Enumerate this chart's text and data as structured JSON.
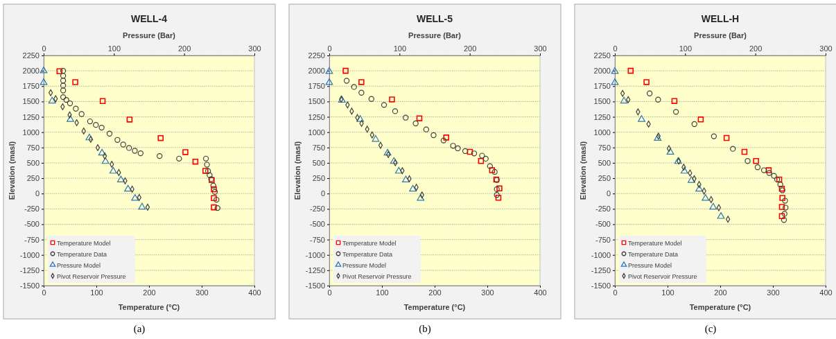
{
  "chart_data": [
    {
      "type": "scatter",
      "title": "WELL-4",
      "xlabel": "Temperature (°C)",
      "x2label": "Pressure (Bar)",
      "ylabel": "Elevation (masl)",
      "annotations": [
        "(a)"
      ],
      "xlim": [
        0,
        400
      ],
      "xticks": [
        0,
        100,
        200,
        300,
        400
      ],
      "x2lim": [
        0,
        300
      ],
      "x2ticks": [
        0,
        100,
        200,
        300
      ],
      "ylim": [
        -1500,
        2250
      ],
      "yticks": [
        -1500,
        -1250,
        -1000,
        -750,
        -500,
        -250,
        0,
        250,
        500,
        750,
        1000,
        1250,
        1500,
        1750,
        2000,
        2250
      ],
      "grid": "y",
      "legend": "bottom left",
      "series": [
        {
          "name": "Temperature Model",
          "color": "#ff0000",
          "marker": "square",
          "x": [
            30,
            60,
            112,
            163,
            222,
            269,
            288,
            307,
            319,
            323,
            323,
            323
          ],
          "values": [
            1993,
            1815,
            1507,
            1206,
            904,
            675,
            520,
            370,
            220,
            69,
            -74,
            -225
          ]
        },
        {
          "name": "Temperature Data",
          "color": "#404040",
          "marker": "circle",
          "x": [
            37,
            37,
            37,
            37,
            37,
            37,
            43,
            50,
            61,
            72,
            88,
            99,
            110,
            125,
            140,
            151,
            162,
            173,
            184,
            220,
            257,
            308,
            310,
            312,
            315,
            318,
            322,
            325,
            328,
            330
          ],
          "values": [
            2000,
            1920,
            1840,
            1760,
            1680,
            1571,
            1526,
            1470,
            1383,
            1296,
            1176,
            1119,
            1074,
            976,
            874,
            799,
            743,
            697,
            656,
            611,
            569,
            569,
            470,
            367,
            300,
            235,
            130,
            28,
            -100,
            -236
          ]
        },
        {
          "name": "Pressure Model",
          "color": "#2e75b6",
          "marker": "triangle",
          "axis": "x2",
          "x": [
            0,
            0,
            12,
            38,
            65,
            83,
            88,
            99,
            110,
            120,
            130,
            140
          ],
          "values": [
            2000,
            1808,
            1507,
            1207,
            906,
            658,
            522,
            364,
            222,
            71,
            -79,
            -222
          ]
        },
        {
          "name": "Pivot Reservoir Pressure",
          "color": "#404040",
          "marker": "diamond",
          "axis": "x2",
          "x": [
            10,
            17,
            27,
            37,
            47,
            57,
            67,
            77,
            87,
            97,
            107,
            116,
            126,
            136,
            148
          ],
          "values": [
            1643,
            1545,
            1414,
            1282,
            1154,
            1019,
            883,
            748,
            613,
            477,
            342,
            207,
            71,
            -64,
            -222
          ]
        }
      ]
    },
    {
      "type": "scatter",
      "title": "WELL-5",
      "xlabel": "Temperature (°C)",
      "x2label": "Pressure (Bar)",
      "ylabel": "Elevation (masl)",
      "annotations": [
        "(b)"
      ],
      "xlim": [
        0,
        400
      ],
      "xticks": [
        0,
        100,
        200,
        300,
        400
      ],
      "x2lim": [
        0,
        300
      ],
      "x2ticks": [
        0,
        100,
        200,
        300
      ],
      "ylim": [
        -1500,
        2250
      ],
      "yticks": [
        -1500,
        -1250,
        -1000,
        -750,
        -500,
        -250,
        0,
        250,
        500,
        750,
        1000,
        1250,
        1500,
        1750,
        2000,
        2250
      ],
      "grid": "y",
      "legend": "bottom left",
      "series": [
        {
          "name": "Temperature Model",
          "color": "#ff0000",
          "marker": "square",
          "x": [
            31,
            61,
            119,
            171,
            222,
            267,
            288,
            309,
            317,
            323,
            321
          ],
          "values": [
            2000,
            1816,
            1534,
            1226,
            913,
            680,
            530,
            380,
            229,
            83,
            -68
          ]
        },
        {
          "name": "Temperature Data",
          "color": "#404040",
          "marker": "circle",
          "x": [
            33,
            47,
            61,
            80,
            104,
            125,
            145,
            164,
            184,
            198,
            217,
            235,
            244,
            258,
            275,
            290,
            297,
            305,
            314,
            318,
            318,
            318
          ],
          "values": [
            1838,
            1737,
            1643,
            1541,
            1444,
            1342,
            1237,
            1143,
            1045,
            951,
            865,
            778,
            737,
            692,
            654,
            617,
            568,
            447,
            353,
            222,
            71,
            -23
          ]
        },
        {
          "name": "Pressure Model",
          "color": "#2e75b6",
          "marker": "triangle",
          "axis": "x2",
          "x": [
            0,
            0,
            18,
            44,
            66,
            83,
            92,
            99,
            109,
            119,
            130
          ],
          "values": [
            1989,
            1808,
            1519,
            1207,
            883,
            658,
            522,
            364,
            222,
            71,
            -79
          ]
        },
        {
          "name": "Pivot Reservoir Pressure",
          "color": "#404040",
          "marker": "diamond",
          "axis": "x2",
          "x": [
            17,
            26,
            32,
            40,
            46,
            54,
            61,
            73,
            84,
            94,
            104,
            114,
            124,
            132
          ],
          "values": [
            1538,
            1444,
            1342,
            1237,
            1143,
            1049,
            955,
            786,
            635,
            504,
            372,
            241,
            102,
            -23
          ]
        }
      ]
    },
    {
      "type": "scatter",
      "title": "WELL-H",
      "xlabel": "Temperature (°C)",
      "x2label": "Pressure (Bar)",
      "ylabel": "Elevation (masl)",
      "annotations": [
        "(c)"
      ],
      "xlim": [
        0,
        400
      ],
      "xticks": [
        0,
        100,
        200,
        300,
        400
      ],
      "x2lim": [
        0,
        300
      ],
      "x2ticks": [
        0,
        100,
        200,
        300
      ],
      "ylim": [
        -1500,
        2250
      ],
      "yticks": [
        -1500,
        -1250,
        -1000,
        -750,
        -500,
        -250,
        0,
        250,
        500,
        750,
        1000,
        1250,
        1500,
        1750,
        2000,
        2250
      ],
      "grid": "y",
      "legend": "bottom left",
      "series": [
        {
          "name": "Temperature Model",
          "color": "#ff0000",
          "marker": "square",
          "x": [
            30,
            60,
            113,
            163,
            212,
            246,
            268,
            292,
            312,
            317,
            318,
            317,
            317
          ],
          "values": [
            2000,
            1816,
            1508,
            1207,
            906,
            680,
            530,
            380,
            229,
            79,
            -71,
            -218,
            -368
          ]
        },
        {
          "name": "Temperature Data",
          "color": "#404040",
          "marker": "circle",
          "x": [
            66,
            82,
            116,
            151,
            188,
            224,
            252,
            271,
            283,
            293,
            302,
            308,
            314,
            318,
            323,
            324,
            322,
            321
          ],
          "values": [
            1632,
            1530,
            1331,
            1132,
            933,
            729,
            530,
            429,
            380,
            335,
            289,
            229,
            147,
            53,
            -117,
            -230,
            -330,
            -430
          ]
        },
        {
          "name": "Pressure Model",
          "color": "#2e75b6",
          "marker": "triangle",
          "axis": "x2",
          "x": [
            0,
            0,
            13,
            38,
            61,
            79,
            90,
            99,
            109,
            120,
            129,
            140,
            151
          ],
          "values": [
            1989,
            1808,
            1507,
            1207,
            898,
            673,
            522,
            364,
            214,
            71,
            -79,
            -222,
            -373
          ]
        },
        {
          "name": "Pivot Reservoir Pressure",
          "color": "#404040",
          "marker": "diamond",
          "axis": "x2",
          "x": [
            11,
            19,
            33,
            48,
            62,
            77,
            91,
            98,
            107,
            113,
            120,
            127,
            137,
            148,
            161
          ],
          "values": [
            1632,
            1530,
            1331,
            1132,
            936,
            733,
            530,
            429,
            335,
            241,
            147,
            41,
            -98,
            -230,
            -418
          ]
        }
      ]
    }
  ]
}
